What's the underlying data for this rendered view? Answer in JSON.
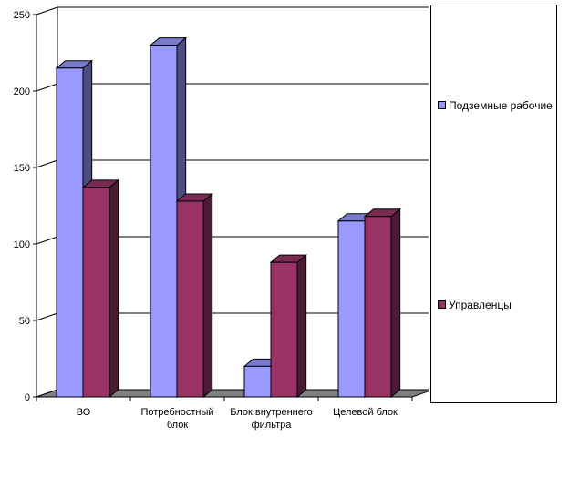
{
  "chart_data": {
    "type": "bar",
    "style": "3d-clustered",
    "categories": [
      "ВО",
      "Потребностный блок",
      "Блок внутреннего фильтра",
      "Целевой блок"
    ],
    "category_lines": [
      [
        "ВО"
      ],
      [
        "Потребностный",
        "блок"
      ],
      [
        "Блок внутреннего",
        "фильтра"
      ],
      [
        "Целевой блок"
      ]
    ],
    "series": [
      {
        "name": "Подземные рабочие",
        "values": [
          215,
          230,
          20,
          115
        ],
        "color": "#9999ff"
      },
      {
        "name": "Управленцы",
        "values": [
          137,
          128,
          88,
          118
        ],
        "color": "#993366"
      }
    ],
    "ylim": [
      0,
      250
    ],
    "yticks": [
      "0",
      "50",
      "100",
      "150",
      "200",
      "250"
    ],
    "grid": true,
    "legend_position": "right"
  },
  "legend": {
    "items": [
      {
        "label": "Подземные рабочие",
        "color": "#9999ff"
      },
      {
        "label": "Управленцы",
        "color": "#993366"
      }
    ]
  }
}
